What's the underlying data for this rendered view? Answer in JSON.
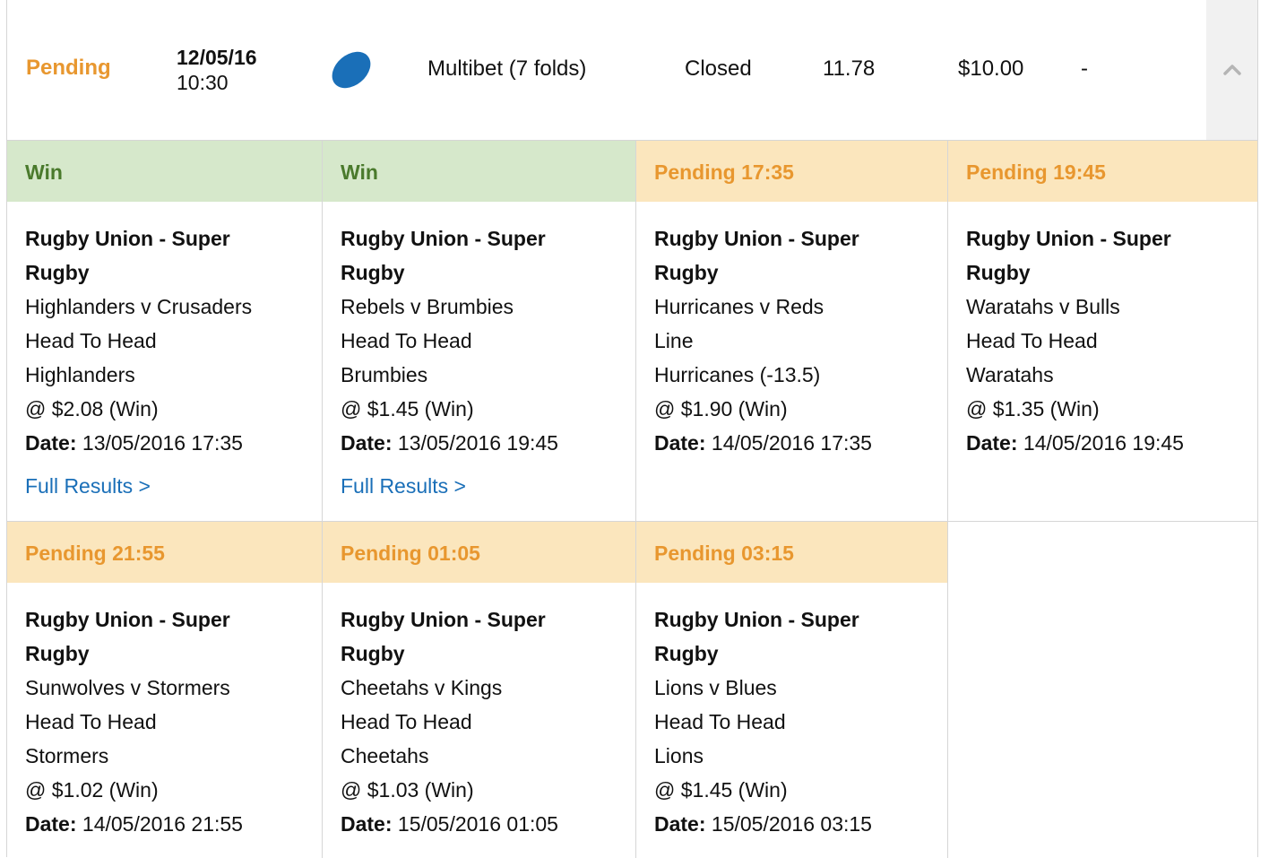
{
  "bet": {
    "status": "Pending",
    "date": "12/05/16",
    "time": "10:30",
    "sport_icon": "rugby-ball-icon",
    "type": "Multibet (7 folds)",
    "bet_status": "Closed",
    "odds": "11.78",
    "stake": "$10.00",
    "returns": "-"
  },
  "colors": {
    "pending": "#e8972f",
    "win": "#4a7a2c",
    "win_bg": "#d6e8cb",
    "pending_bg": "#fbe6bd",
    "link": "#1a6fb8",
    "rugby_ball": "#1a6fb8"
  },
  "date_label": "Date:",
  "full_results_label": "Full Results >",
  "legs": [
    {
      "header": "Win",
      "state": "win",
      "category": "Rugby Union - Super Rugby",
      "match": "Highlanders v Crusaders",
      "market": "Head To Head",
      "selection": "Highlanders",
      "price": "@ $2.08 (Win)",
      "date": "13/05/2016 17:35",
      "has_results": true
    },
    {
      "header": "Win",
      "state": "win",
      "category": "Rugby Union - Super Rugby",
      "match": "Rebels v Brumbies",
      "market": "Head To Head",
      "selection": "Brumbies",
      "price": "@ $1.45 (Win)",
      "date": "13/05/2016 19:45",
      "has_results": true
    },
    {
      "header": "Pending 17:35",
      "state": "pending",
      "category": "Rugby Union - Super Rugby",
      "match": "Hurricanes v Reds",
      "market": "Line",
      "selection": "Hurricanes (-13.5)",
      "price": "@ $1.90 (Win)",
      "date": "14/05/2016 17:35",
      "has_results": false
    },
    {
      "header": "Pending 19:45",
      "state": "pending",
      "category": "Rugby Union - Super Rugby",
      "match": "Waratahs v Bulls",
      "market": "Head To Head",
      "selection": "Waratahs",
      "price": "@ $1.35 (Win)",
      "date": "14/05/2016 19:45",
      "has_results": false
    },
    {
      "header": "Pending 21:55",
      "state": "pending",
      "category": "Rugby Union - Super Rugby",
      "match": "Sunwolves v Stormers",
      "market": "Head To Head",
      "selection": "Stormers",
      "price": "@ $1.02 (Win)",
      "date": "14/05/2016 21:55",
      "has_results": false
    },
    {
      "header": "Pending 01:05",
      "state": "pending",
      "category": "Rugby Union - Super Rugby",
      "match": "Cheetahs v Kings",
      "market": "Head To Head",
      "selection": "Cheetahs",
      "price": "@ $1.03 (Win)",
      "date": "15/05/2016 01:05",
      "has_results": false
    },
    {
      "header": "Pending 03:15",
      "state": "pending",
      "category": "Rugby Union - Super Rugby",
      "match": "Lions v Blues",
      "market": "Head To Head",
      "selection": "Lions",
      "price": "@ $1.45 (Win)",
      "date": "15/05/2016 03:15",
      "has_results": false
    }
  ]
}
